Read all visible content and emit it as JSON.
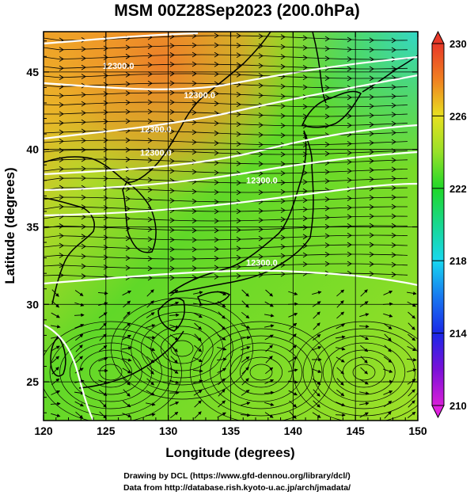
{
  "title": "MSM 00Z28Sep2023 (200.0hPa)",
  "credits": {
    "line1": "Drawing by DCL (https://www.gfd-dennou.org/library/dcl/)",
    "line2": "Data from http://database.rish.kyoto-u.ac.jp/arch/jmadata/"
  },
  "map": {
    "x_axis": {
      "label": "Longitude (degrees)",
      "range": [
        120,
        150
      ],
      "ticks": [
        "120",
        "125",
        "130",
        "135",
        "140",
        "145",
        "150"
      ]
    },
    "y_axis": {
      "label": "Latitude  (degrees)",
      "range": [
        22.5,
        47.6
      ],
      "ticks": [
        "25",
        "30",
        "35",
        "40",
        "45"
      ]
    },
    "grid_spacing_deg": 5,
    "contour_labels": [
      {
        "text": "12300.0",
        "lon": 126.0,
        "lat": 45.2
      },
      {
        "text": "12300.0",
        "lon": 132.5,
        "lat": 43.3
      },
      {
        "text": "12300.0",
        "lon": 129.0,
        "lat": 41.1
      },
      {
        "text": "12300.0",
        "lon": 129.0,
        "lat": 39.6
      },
      {
        "text": "12300.0",
        "lon": 137.5,
        "lat": 37.8
      },
      {
        "text": "12300.0",
        "lon": 137.5,
        "lat": 32.5
      }
    ],
    "colors": {
      "contour": "#ffffff",
      "streamline": "#000000",
      "coastline": "#000000"
    }
  },
  "colorbar": {
    "min": 210,
    "max": 230,
    "tick_labels": [
      "230",
      "226",
      "222",
      "218",
      "214",
      "210"
    ],
    "tick_values": [
      230,
      226,
      222,
      218,
      214,
      210
    ],
    "stops": [
      {
        "value": 210,
        "color": "#d81fd8"
      },
      {
        "value": 212,
        "color": "#7a10d8"
      },
      {
        "value": 214,
        "color": "#1a28e8"
      },
      {
        "value": 216,
        "color": "#1878f0"
      },
      {
        "value": 218,
        "color": "#18d8f0"
      },
      {
        "value": 220,
        "color": "#18d890"
      },
      {
        "value": 222,
        "color": "#20d828"
      },
      {
        "value": 224,
        "color": "#98e028"
      },
      {
        "value": 226,
        "color": "#e8e020"
      },
      {
        "value": 228,
        "color": "#f08020"
      },
      {
        "value": 230,
        "color": "#e83828"
      }
    ]
  }
}
